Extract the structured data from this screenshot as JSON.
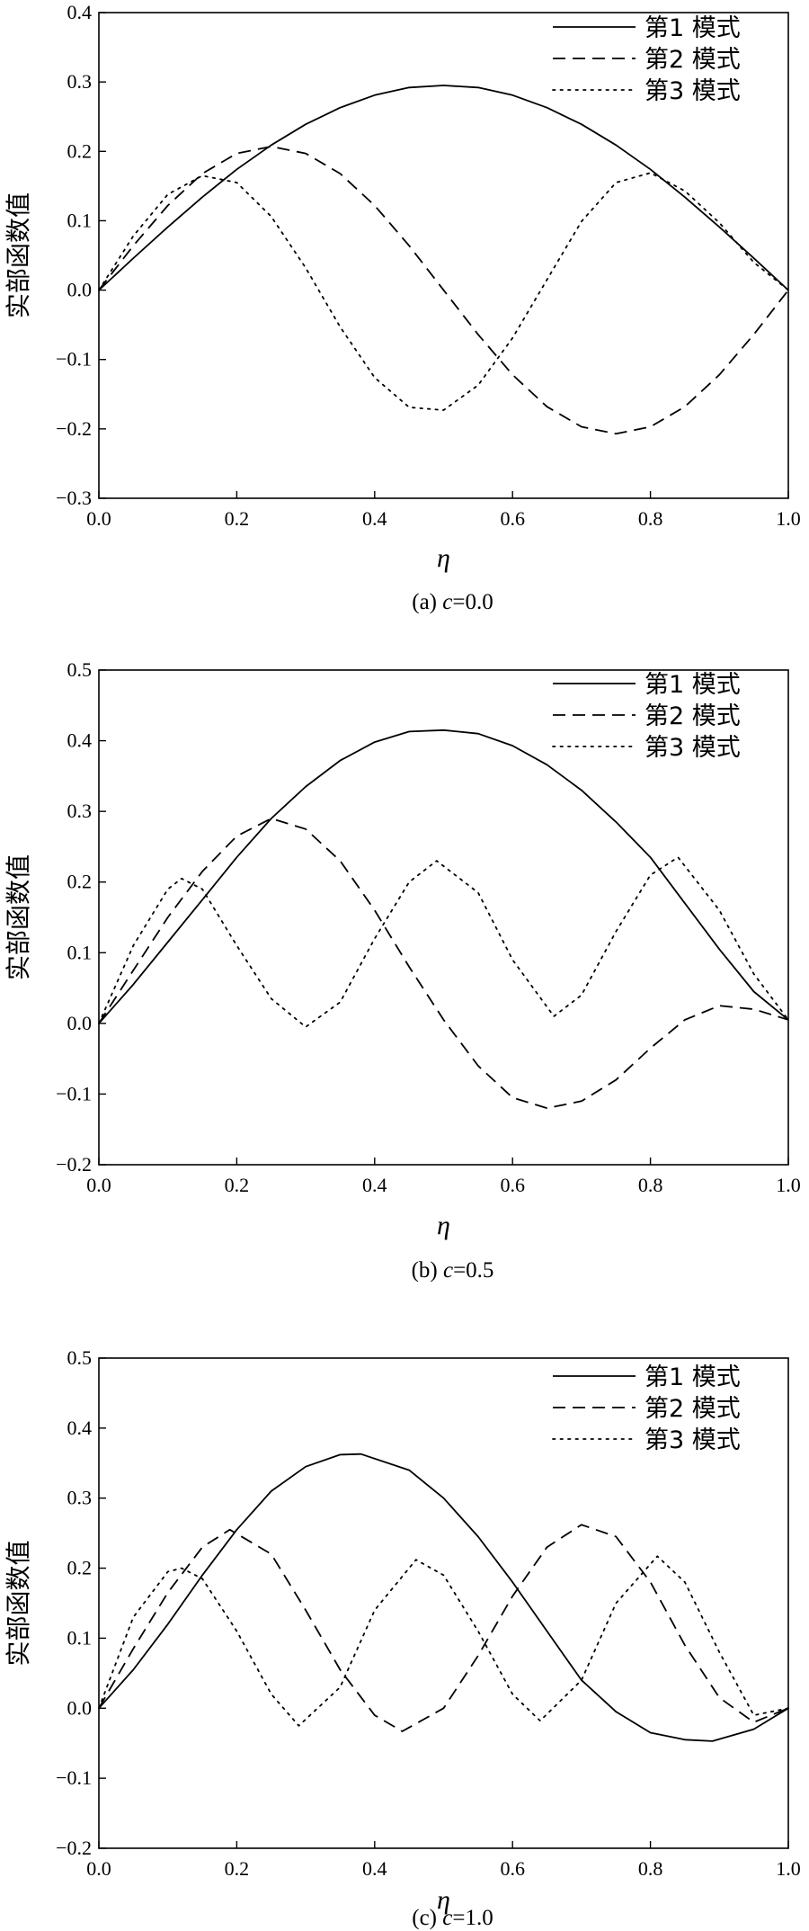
{
  "chart_data": [
    {
      "type": "line",
      "caption": "(a) c=0.0",
      "caption_prefix": "(a) ",
      "caption_var": "c",
      "caption_value": "=0.0",
      "xlabel": "η",
      "ylabel": "实部函数值",
      "xlim": [
        0.0,
        1.0
      ],
      "ylim": [
        -0.3,
        0.4
      ],
      "xticks": [
        "0.0",
        "0.2",
        "0.4",
        "0.6",
        "0.8",
        "1.0"
      ],
      "yticks": [
        "−0.3",
        "−0.2",
        "−0.1",
        "0.0",
        "0.1",
        "0.2",
        "0.3",
        "0.4"
      ],
      "legend_position": "top-right",
      "grid": false,
      "series": [
        {
          "name": "第1 模式",
          "style": "solid",
          "x": [
            0,
            0.05,
            0.1,
            0.15,
            0.2,
            0.25,
            0.3,
            0.35,
            0.4,
            0.45,
            0.5,
            0.55,
            0.6,
            0.65,
            0.7,
            0.75,
            0.8,
            0.85,
            0.9,
            0.95,
            1.0
          ],
          "y": [
            0,
            0.046,
            0.091,
            0.134,
            0.174,
            0.209,
            0.239,
            0.263,
            0.281,
            0.292,
            0.295,
            0.292,
            0.281,
            0.263,
            0.239,
            0.209,
            0.174,
            0.134,
            0.091,
            0.046,
            0
          ]
        },
        {
          "name": "第2 模式",
          "style": "dashed",
          "x": [
            0,
            0.05,
            0.1,
            0.15,
            0.2,
            0.25,
            0.3,
            0.35,
            0.4,
            0.45,
            0.5,
            0.55,
            0.6,
            0.65,
            0.7,
            0.75,
            0.8,
            0.85,
            0.9,
            0.95,
            1.0
          ],
          "y": [
            0,
            0.064,
            0.122,
            0.168,
            0.197,
            0.207,
            0.197,
            0.168,
            0.122,
            0.064,
            0,
            -0.064,
            -0.122,
            -0.168,
            -0.197,
            -0.207,
            -0.197,
            -0.168,
            -0.122,
            -0.064,
            0
          ]
        },
        {
          "name": "第3 模式",
          "style": "dotted",
          "x": [
            0,
            0.05,
            0.1,
            0.15,
            0.2,
            0.25,
            0.3,
            0.35,
            0.4,
            0.45,
            0.5,
            0.55,
            0.6,
            0.65,
            0.7,
            0.75,
            0.8,
            0.85,
            0.9,
            0.95,
            1.0
          ],
          "y": [
            0,
            0.078,
            0.138,
            0.165,
            0.155,
            0.106,
            0.032,
            -0.053,
            -0.126,
            -0.169,
            -0.173,
            -0.137,
            -0.069,
            0.015,
            0.099,
            0.155,
            0.169,
            0.143,
            0.097,
            0.04,
            0
          ]
        }
      ]
    },
    {
      "type": "line",
      "caption": "(b) c=0.5",
      "caption_prefix": "(b) ",
      "caption_var": "c",
      "caption_value": "=0.5",
      "xlabel": "η",
      "ylabel": "实部函数值",
      "xlim": [
        0.0,
        1.0
      ],
      "ylim": [
        -0.2,
        0.5
      ],
      "xticks": [
        "0.0",
        "0.2",
        "0.4",
        "0.6",
        "0.8",
        "1.0"
      ],
      "yticks": [
        "−0.2",
        "−0.1",
        "0.0",
        "0.1",
        "0.2",
        "0.3",
        "0.4",
        "0.5"
      ],
      "legend_position": "top-right",
      "grid": false,
      "series": [
        {
          "name": "第1 模式",
          "style": "solid",
          "x": [
            0,
            0.05,
            0.1,
            0.15,
            0.2,
            0.25,
            0.3,
            0.35,
            0.4,
            0.45,
            0.5,
            0.55,
            0.6,
            0.65,
            0.7,
            0.75,
            0.8,
            0.85,
            0.9,
            0.95,
            1.0
          ],
          "y": [
            0,
            0.055,
            0.115,
            0.175,
            0.235,
            0.29,
            0.335,
            0.372,
            0.398,
            0.413,
            0.415,
            0.41,
            0.393,
            0.366,
            0.33,
            0.285,
            0.235,
            0.17,
            0.105,
            0.045,
            0.005
          ]
        },
        {
          "name": "第2 模式",
          "style": "dashed",
          "x": [
            0,
            0.05,
            0.1,
            0.15,
            0.2,
            0.25,
            0.3,
            0.35,
            0.4,
            0.45,
            0.5,
            0.55,
            0.6,
            0.65,
            0.7,
            0.75,
            0.8,
            0.85,
            0.9,
            0.95,
            1.0
          ],
          "y": [
            0,
            0.075,
            0.15,
            0.215,
            0.265,
            0.29,
            0.275,
            0.23,
            0.16,
            0.08,
            0.005,
            -0.06,
            -0.105,
            -0.12,
            -0.11,
            -0.08,
            -0.035,
            0.005,
            0.025,
            0.02,
            0.005
          ]
        },
        {
          "name": "第3 模式",
          "style": "dotted",
          "x": [
            0,
            0.05,
            0.1,
            0.12,
            0.15,
            0.2,
            0.25,
            0.3,
            0.35,
            0.4,
            0.45,
            0.49,
            0.55,
            0.6,
            0.66,
            0.7,
            0.75,
            0.8,
            0.84,
            0.9,
            0.95,
            1.0
          ],
          "y": [
            0,
            0.11,
            0.19,
            0.205,
            0.19,
            0.11,
            0.035,
            -0.005,
            0.03,
            0.12,
            0.2,
            0.23,
            0.185,
            0.09,
            0.01,
            0.04,
            0.13,
            0.21,
            0.235,
            0.16,
            0.07,
            0.005
          ]
        }
      ]
    },
    {
      "type": "line",
      "caption": "(c) c=1.0",
      "caption_prefix": "(c) ",
      "caption_var": "c",
      "caption_value": "=1.0",
      "xlabel": "η",
      "ylabel": "实部函数值",
      "xlim": [
        0.0,
        1.0
      ],
      "ylim": [
        -0.2,
        0.5
      ],
      "xticks": [
        "0.0",
        "0.2",
        "0.4",
        "0.6",
        "0.8",
        "1.0"
      ],
      "yticks": [
        "−0.2",
        "−0.1",
        "0.0",
        "0.1",
        "0.2",
        "0.3",
        "0.4",
        "0.5"
      ],
      "legend_position": "top-right",
      "grid": false,
      "series": [
        {
          "name": "第1 模式",
          "style": "solid",
          "x": [
            0,
            0.05,
            0.1,
            0.15,
            0.2,
            0.25,
            0.3,
            0.35,
            0.38,
            0.45,
            0.5,
            0.55,
            0.6,
            0.65,
            0.7,
            0.75,
            0.8,
            0.85,
            0.89,
            0.95,
            1.0
          ],
          "y": [
            0,
            0.055,
            0.12,
            0.19,
            0.255,
            0.31,
            0.345,
            0.362,
            0.363,
            0.34,
            0.3,
            0.245,
            0.18,
            0.11,
            0.04,
            -0.005,
            -0.035,
            -0.045,
            -0.047,
            -0.03,
            0
          ]
        },
        {
          "name": "第2 模式",
          "style": "dashed",
          "x": [
            0,
            0.05,
            0.1,
            0.15,
            0.19,
            0.25,
            0.3,
            0.35,
            0.4,
            0.44,
            0.5,
            0.55,
            0.6,
            0.65,
            0.7,
            0.75,
            0.8,
            0.85,
            0.9,
            0.95,
            1.0
          ],
          "y": [
            0,
            0.085,
            0.165,
            0.23,
            0.255,
            0.22,
            0.14,
            0.055,
            -0.01,
            -0.033,
            0.0,
            0.075,
            0.16,
            0.23,
            0.262,
            0.245,
            0.18,
            0.09,
            0.015,
            -0.02,
            0
          ]
        },
        {
          "name": "第3 模式",
          "style": "dotted",
          "x": [
            0,
            0.05,
            0.1,
            0.12,
            0.15,
            0.2,
            0.25,
            0.29,
            0.35,
            0.4,
            0.46,
            0.5,
            0.55,
            0.6,
            0.64,
            0.7,
            0.75,
            0.81,
            0.85,
            0.9,
            0.95,
            1.0
          ],
          "y": [
            0,
            0.13,
            0.195,
            0.2,
            0.185,
            0.11,
            0.02,
            -0.025,
            0.03,
            0.14,
            0.212,
            0.19,
            0.11,
            0.02,
            -0.018,
            0.04,
            0.15,
            0.217,
            0.18,
            0.08,
            -0.01,
            0
          ]
        }
      ]
    }
  ]
}
